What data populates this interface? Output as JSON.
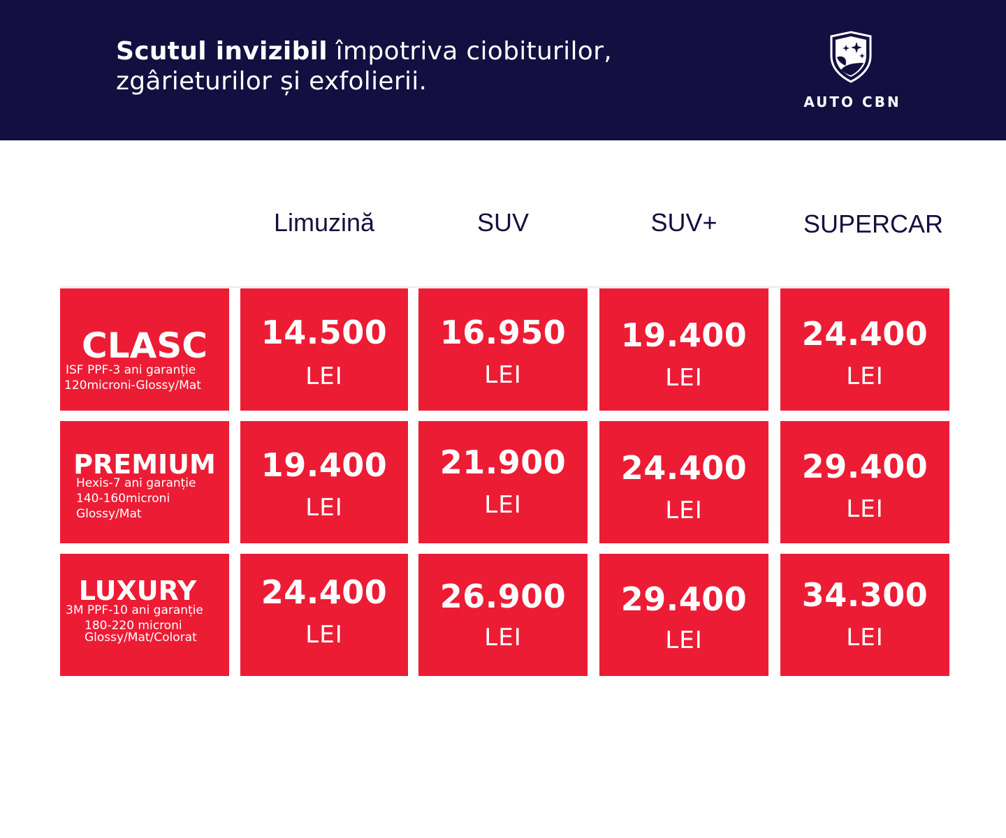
{
  "header": {
    "headline_bold": "Scutul invizibil",
    "headline_rest": " împotriva ciobiturilor,",
    "headline_line2": "zgârieturilor și exfolierii.",
    "logo_text": "AUTO CBN",
    "logo_icon": "shield-stars-icon"
  },
  "columns": [
    "Limuzină",
    "SUV",
    "SUV+",
    "SUPERCAR"
  ],
  "currency": "LEI",
  "tiers": [
    {
      "name": "CLASC",
      "desc": [
        "ISF PPF-3 ani garanție",
        "120microni-Glossy/Mat"
      ],
      "prices": [
        "14.500",
        "16.950",
        "19.400",
        "24.400"
      ]
    },
    {
      "name": "PREMIUM",
      "desc": [
        "Hexis-7 ani garanție",
        "140-160microni",
        "Glossy/Mat"
      ],
      "prices": [
        "19.400",
        "21.900",
        "24.400",
        "29.400"
      ]
    },
    {
      "name": "LUXURY",
      "desc": [
        "3M PPF-10 ani garanție",
        "180-220 microni",
        "Glossy/Mat/Colorat"
      ],
      "prices": [
        "24.400",
        "26.900",
        "29.400",
        "34.300"
      ]
    }
  ],
  "colors": {
    "navy": "#130f40",
    "red": "#ec1c35",
    "white": "#ffffff"
  }
}
